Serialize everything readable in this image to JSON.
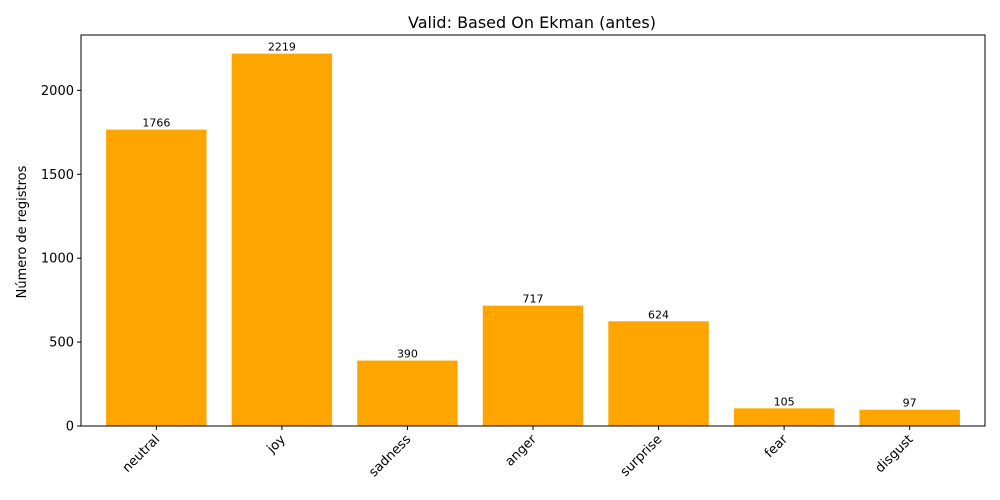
{
  "chart_data": {
    "type": "bar",
    "title": "Valid: Based On Ekman (antes)",
    "xlabel": "",
    "ylabel": "Número de registros",
    "categories": [
      "neutral",
      "joy",
      "sadness",
      "anger",
      "surprise",
      "fear",
      "disgust"
    ],
    "values": [
      1766,
      2219,
      390,
      717,
      624,
      105,
      97
    ],
    "data_labels": [
      "1766",
      "2219",
      "390",
      "717",
      "624",
      "105",
      "97"
    ],
    "ylim": [
      0,
      2330
    ],
    "yticks": [
      0,
      500,
      1000,
      1500,
      2000
    ],
    "ytick_labels": [
      "0",
      "500",
      "1000",
      "1500",
      "2000"
    ],
    "bar_color": "#ffa500",
    "grid": false,
    "legend": "none",
    "x_tick_rotation_deg": 45
  }
}
